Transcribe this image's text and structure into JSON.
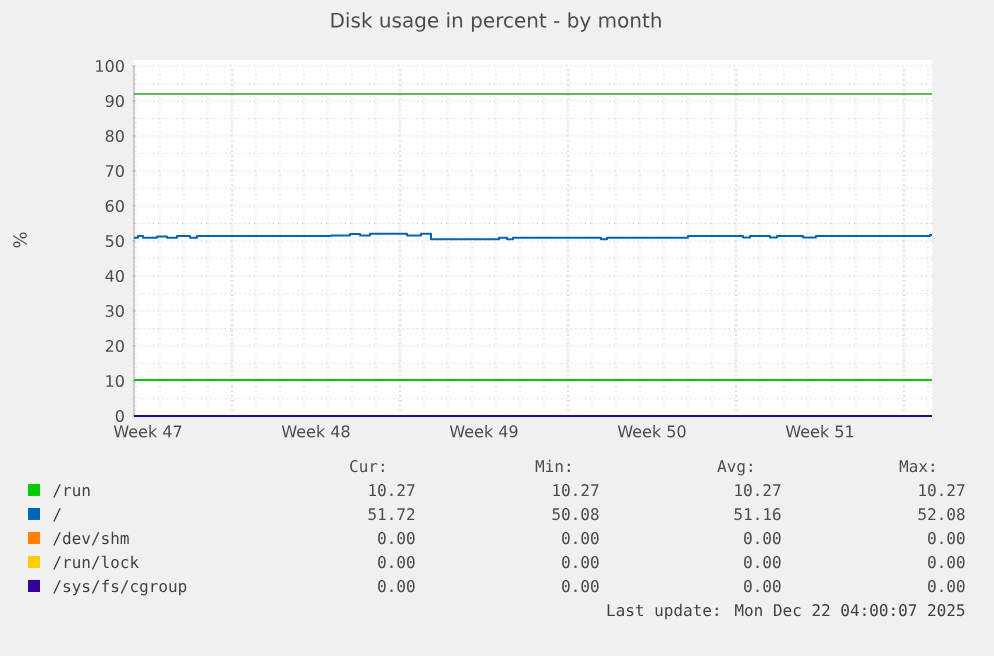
{
  "chart_data": {
    "type": "step",
    "title": "Disk usage in percent - by month",
    "ylabel": "%",
    "xlim": [
      "2025-11-18T22:00",
      "2025-12-22T04:00"
    ],
    "xticks": [
      {
        "value": "2025-11-19T12:00",
        "label": "Week 47"
      },
      {
        "value": "2025-11-26T12:00",
        "label": "Week 48"
      },
      {
        "value": "2025-12-03T12:00",
        "label": "Week 49"
      },
      {
        "value": "2025-12-10T12:00",
        "label": "Week 50"
      },
      {
        "value": "2025-12-17T12:00",
        "label": "Week 51"
      },
      {
        "value": "2025-11-23",
        "label": null
      },
      {
        "value": "2025-11-30",
        "label": null
      },
      {
        "value": "2025-12-07",
        "label": null
      },
      {
        "value": "2025-12-14",
        "label": null
      },
      {
        "value": "2025-12-21",
        "label": null
      }
    ],
    "ylim": [
      0,
      100
    ],
    "yticks": [
      0,
      10,
      20,
      30,
      40,
      50,
      60,
      70,
      80,
      90,
      100
    ],
    "grid": true,
    "legend": "bottom",
    "ref_lines": [
      {
        "axis": "y",
        "value": 92,
        "color": "#2aa02a"
      }
    ],
    "series": [
      {
        "name": "/run",
        "color": "#00cc00",
        "x": [
          "2025-11-18T22:00",
          "2025-12-22T04:00"
        ],
        "values": [
          10.27,
          10.27
        ]
      },
      {
        "name": "/",
        "color": "#0066b3",
        "x": [
          "2025-11-18T22:00",
          "2025-11-19T02:00",
          "2025-11-19T07:00",
          "2025-11-19T21:00",
          "2025-11-20T07:00",
          "2025-11-20T17:00",
          "2025-11-21T06:00",
          "2025-11-21T13:00",
          "2025-11-27T03:00",
          "2025-11-27T22:00",
          "2025-11-28T08:00",
          "2025-11-28T18:00",
          "2025-11-30T07:00",
          "2025-11-30T21:00",
          "2025-12-01T07:00",
          "2025-12-04T03:00",
          "2025-12-04T11:00",
          "2025-12-04T17:00",
          "2025-12-08T09:00",
          "2025-12-08T15:00",
          "2025-12-12T00:00",
          "2025-12-14T07:00",
          "2025-12-14T14:00",
          "2025-12-15T10:00",
          "2025-12-15T17:00",
          "2025-12-16T19:00",
          "2025-12-17T08:00",
          "2025-12-22T02:00",
          "2025-12-22T04:00"
        ],
        "values": [
          50.9,
          51.4,
          50.9,
          51.3,
          50.9,
          51.4,
          50.9,
          51.4,
          51.6,
          52.0,
          51.6,
          52.1,
          51.6,
          52.1,
          50.5,
          50.9,
          50.5,
          50.9,
          50.5,
          50.9,
          51.4,
          51.0,
          51.4,
          51.0,
          51.4,
          51.0,
          51.4,
          51.7,
          51.7
        ]
      },
      {
        "name": "/dev/shm",
        "color": "#ff8000"
      },
      {
        "name": "/run/lock",
        "color": "#ffcc00"
      },
      {
        "name": "/sys/fs/cgroup",
        "color": "#330099",
        "x": [
          "2025-11-18T22:00",
          "2025-12-22T04:00"
        ],
        "values": [
          0,
          0
        ]
      }
    ],
    "annotations": [
      "Cur:",
      "Min:",
      "Avg:",
      "Max:",
      "10.27",
      "10.27",
      "10.27",
      "10.27",
      "51.72",
      "50.08",
      "51.16",
      "52.08",
      "0.00",
      "0.00",
      "0.00",
      "0.00",
      "0.00",
      "0.00",
      "0.00",
      "0.00",
      "0.00",
      "0.00",
      "0.00",
      "0.00",
      "Last update: Mon Dec 22 04:00:07 2025"
    ]
  }
}
